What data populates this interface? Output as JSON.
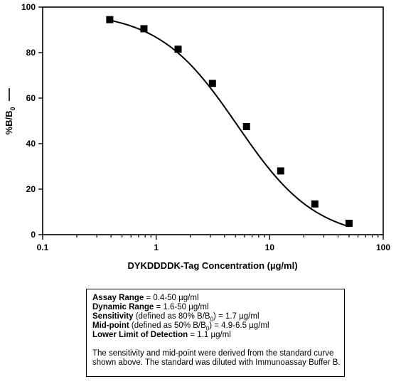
{
  "chart_data": {
    "type": "scatter",
    "xlabel": "DYKDDDDK-Tag Concentration (µg/ml)",
    "ylabel_main": "%B/B",
    "ylabel_sub": "0",
    "xscale": "log",
    "xlim": [
      0.1,
      100
    ],
    "ylim": [
      0,
      100
    ],
    "x_ticks": [
      0.1,
      1,
      10,
      100
    ],
    "x_tick_labels": [
      "0.1",
      "1",
      "10",
      "100"
    ],
    "y_ticks": [
      0,
      20,
      40,
      60,
      80,
      100
    ],
    "y_tick_labels": [
      "0",
      "20",
      "40",
      "60",
      "80",
      "100"
    ],
    "grid": false,
    "series": [
      {
        "marker": "square",
        "color": "#000000",
        "x": [
          0.39,
          0.78,
          1.56,
          3.13,
          6.25,
          12.5,
          25,
          50
        ],
        "y": [
          94.5,
          90.5,
          81.5,
          66.5,
          47.5,
          28,
          13.5,
          5
        ]
      }
    ],
    "fit_curve": {
      "type": "4PL",
      "color": "#000000",
      "top": 98,
      "bottom": -2,
      "ec50": 5.2,
      "hill": 1.25
    }
  },
  "info": {
    "assay_range_label": "Assay Range",
    "assay_range_value": " = 0.4-50 µg/ml",
    "dynamic_range_label": "Dynamic Range",
    "dynamic_range_value": " = 1.6-50 µg/ml",
    "sensitivity_label": "Sensitivity",
    "sensitivity_pre": " (defined as 80% B/B",
    "sensitivity_sub": "0",
    "sensitivity_post": ") = 1.7 µg/ml",
    "midpoint_label": "Mid-point",
    "midpoint_pre": " (defined as 50% B/B",
    "midpoint_sub": "0",
    "midpoint_post": ") = 4.9-6.5 µg/ml",
    "lld_label": "Lower Limit of Detection",
    "lld_value": " = 1.1 µg/ml",
    "note_line1": "The sensitivity and mid-point were derived from the standard curve",
    "note_line2": "shown above. The standard was diluted with Immunoassay Buffer B."
  }
}
